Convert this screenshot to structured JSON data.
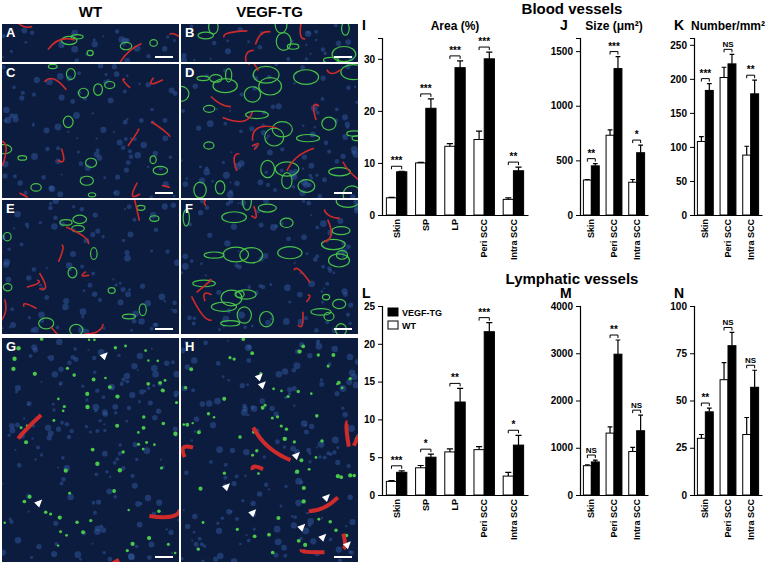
{
  "figure": {
    "column_titles": [
      "WT",
      "VEGF-TG"
    ],
    "image_panels": [
      "A",
      "B",
      "C",
      "D",
      "E",
      "F",
      "G",
      "H"
    ],
    "section_titles": [
      "Blood vessels",
      "Lymphatic vessels"
    ]
  },
  "chart_data": [
    {
      "type": "bar",
      "panel": "I",
      "title": "Area (%)",
      "categories": [
        "Skin",
        "SP",
        "LP",
        "Peri SCC",
        "Intra SCC"
      ],
      "series": [
        {
          "name": "WT",
          "color": "#ffffff",
          "values": [
            3.3,
            10,
            13.2,
            14.5,
            3.0
          ],
          "errors": [
            0.1,
            0.1,
            0.5,
            1.6,
            0.3
          ]
        },
        {
          "name": "VEGF-TG",
          "color": "#000000",
          "values": [
            8.3,
            20.5,
            28.3,
            30,
            8.5
          ],
          "errors": [
            0.1,
            1.8,
            1.3,
            1.3,
            0.7
          ]
        }
      ],
      "ylim": [
        0,
        34
      ],
      "yticks": [
        0,
        10,
        20,
        30
      ],
      "significance": [
        "***",
        "***",
        "***",
        "***",
        "**"
      ]
    },
    {
      "type": "bar",
      "panel": "J",
      "title": "Size (μm²)",
      "categories": [
        "Skin",
        "Peri SCC",
        "Intra SCC"
      ],
      "series": [
        {
          "name": "WT",
          "color": "#ffffff",
          "values": [
            320,
            730,
            300
          ],
          "errors": [
            5,
            50,
            25
          ]
        },
        {
          "name": "VEGF-TG",
          "color": "#000000",
          "values": [
            450,
            1340,
            570
          ],
          "errors": [
            20,
            110,
            70
          ]
        }
      ],
      "ylim": [
        0,
        1620
      ],
      "yticks": [
        0,
        500,
        1000,
        1500
      ],
      "significance": [
        "**",
        "***",
        "*"
      ]
    },
    {
      "type": "bar",
      "panel": "K",
      "title": "Number/mm²",
      "categories": [
        "Skin",
        "Peri SCC",
        "Intra SCC"
      ],
      "series": [
        {
          "name": "WT",
          "color": "#ffffff",
          "values": [
            108,
            202,
            88
          ],
          "errors": [
            7,
            15,
            13
          ]
        },
        {
          "name": "VEGF-TG",
          "color": "#000000",
          "values": [
            183,
            222,
            178
          ],
          "errors": [
            10,
            14,
            20
          ]
        }
      ],
      "ylim": [
        0,
        260
      ],
      "yticks": [
        0,
        50,
        100,
        150,
        200,
        250
      ],
      "significance": [
        "***",
        "NS",
        "**"
      ]
    },
    {
      "type": "bar",
      "panel": "L",
      "categories": [
        "Skin",
        "SP",
        "LP",
        "Peri SCC",
        "Intra SCC"
      ],
      "series": [
        {
          "name": "WT",
          "color": "#ffffff",
          "values": [
            1.8,
            3.6,
            5.7,
            6.0,
            2.5
          ],
          "errors": [
            0.1,
            0.3,
            0.4,
            0.4,
            0.5
          ]
        },
        {
          "name": "VEGF-TG",
          "color": "#000000",
          "values": [
            3.0,
            5.0,
            12.3,
            21.6,
            6.6
          ],
          "errors": [
            0.2,
            0.4,
            1.8,
            1.2,
            1.3
          ]
        }
      ],
      "ylim": [
        0,
        25
      ],
      "yticks": [
        0,
        5,
        10,
        15,
        20,
        25
      ],
      "significance": [
        "***",
        "*",
        "**",
        "***",
        "*"
      ],
      "legend": "upper left"
    },
    {
      "type": "bar",
      "panel": "M",
      "categories": [
        "Skin",
        "Peri SCC",
        "Intra SCC"
      ],
      "series": [
        {
          "name": "WT",
          "color": "#ffffff",
          "values": [
            620,
            1310,
            920
          ],
          "errors": [
            20,
            130,
            90
          ]
        },
        {
          "name": "VEGF-TG",
          "color": "#000000",
          "values": [
            700,
            2980,
            1360
          ],
          "errors": [
            40,
            300,
            330
          ]
        }
      ],
      "ylim": [
        0,
        4000
      ],
      "yticks": [
        0,
        1000,
        2000,
        3000,
        4000
      ],
      "significance": [
        "NS",
        "**",
        "NS"
      ]
    },
    {
      "type": "bar",
      "panel": "N",
      "categories": [
        "Skin",
        "Peri SCC",
        "Intra SCC"
      ],
      "series": [
        {
          "name": "WT",
          "color": "#ffffff",
          "values": [
            30,
            61,
            32
          ],
          "errors": [
            2,
            9,
            9
          ]
        },
        {
          "name": "VEGF-TG",
          "color": "#000000",
          "values": [
            44,
            79,
            57
          ],
          "errors": [
            2,
            7,
            9
          ]
        }
      ],
      "ylim": [
        0,
        100
      ],
      "yticks": [
        0,
        25,
        50,
        75,
        100
      ],
      "significance": [
        "**",
        "NS",
        "NS"
      ]
    }
  ]
}
